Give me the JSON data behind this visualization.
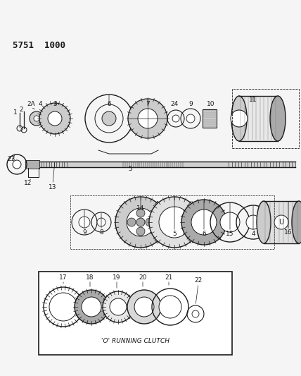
{
  "title": "5751  1000",
  "background_color": "#f5f5f5",
  "fig_width": 4.28,
  "fig_height": 5.33,
  "dpi": 100,
  "inset_label": "'O' RUNNING CLUTCH"
}
